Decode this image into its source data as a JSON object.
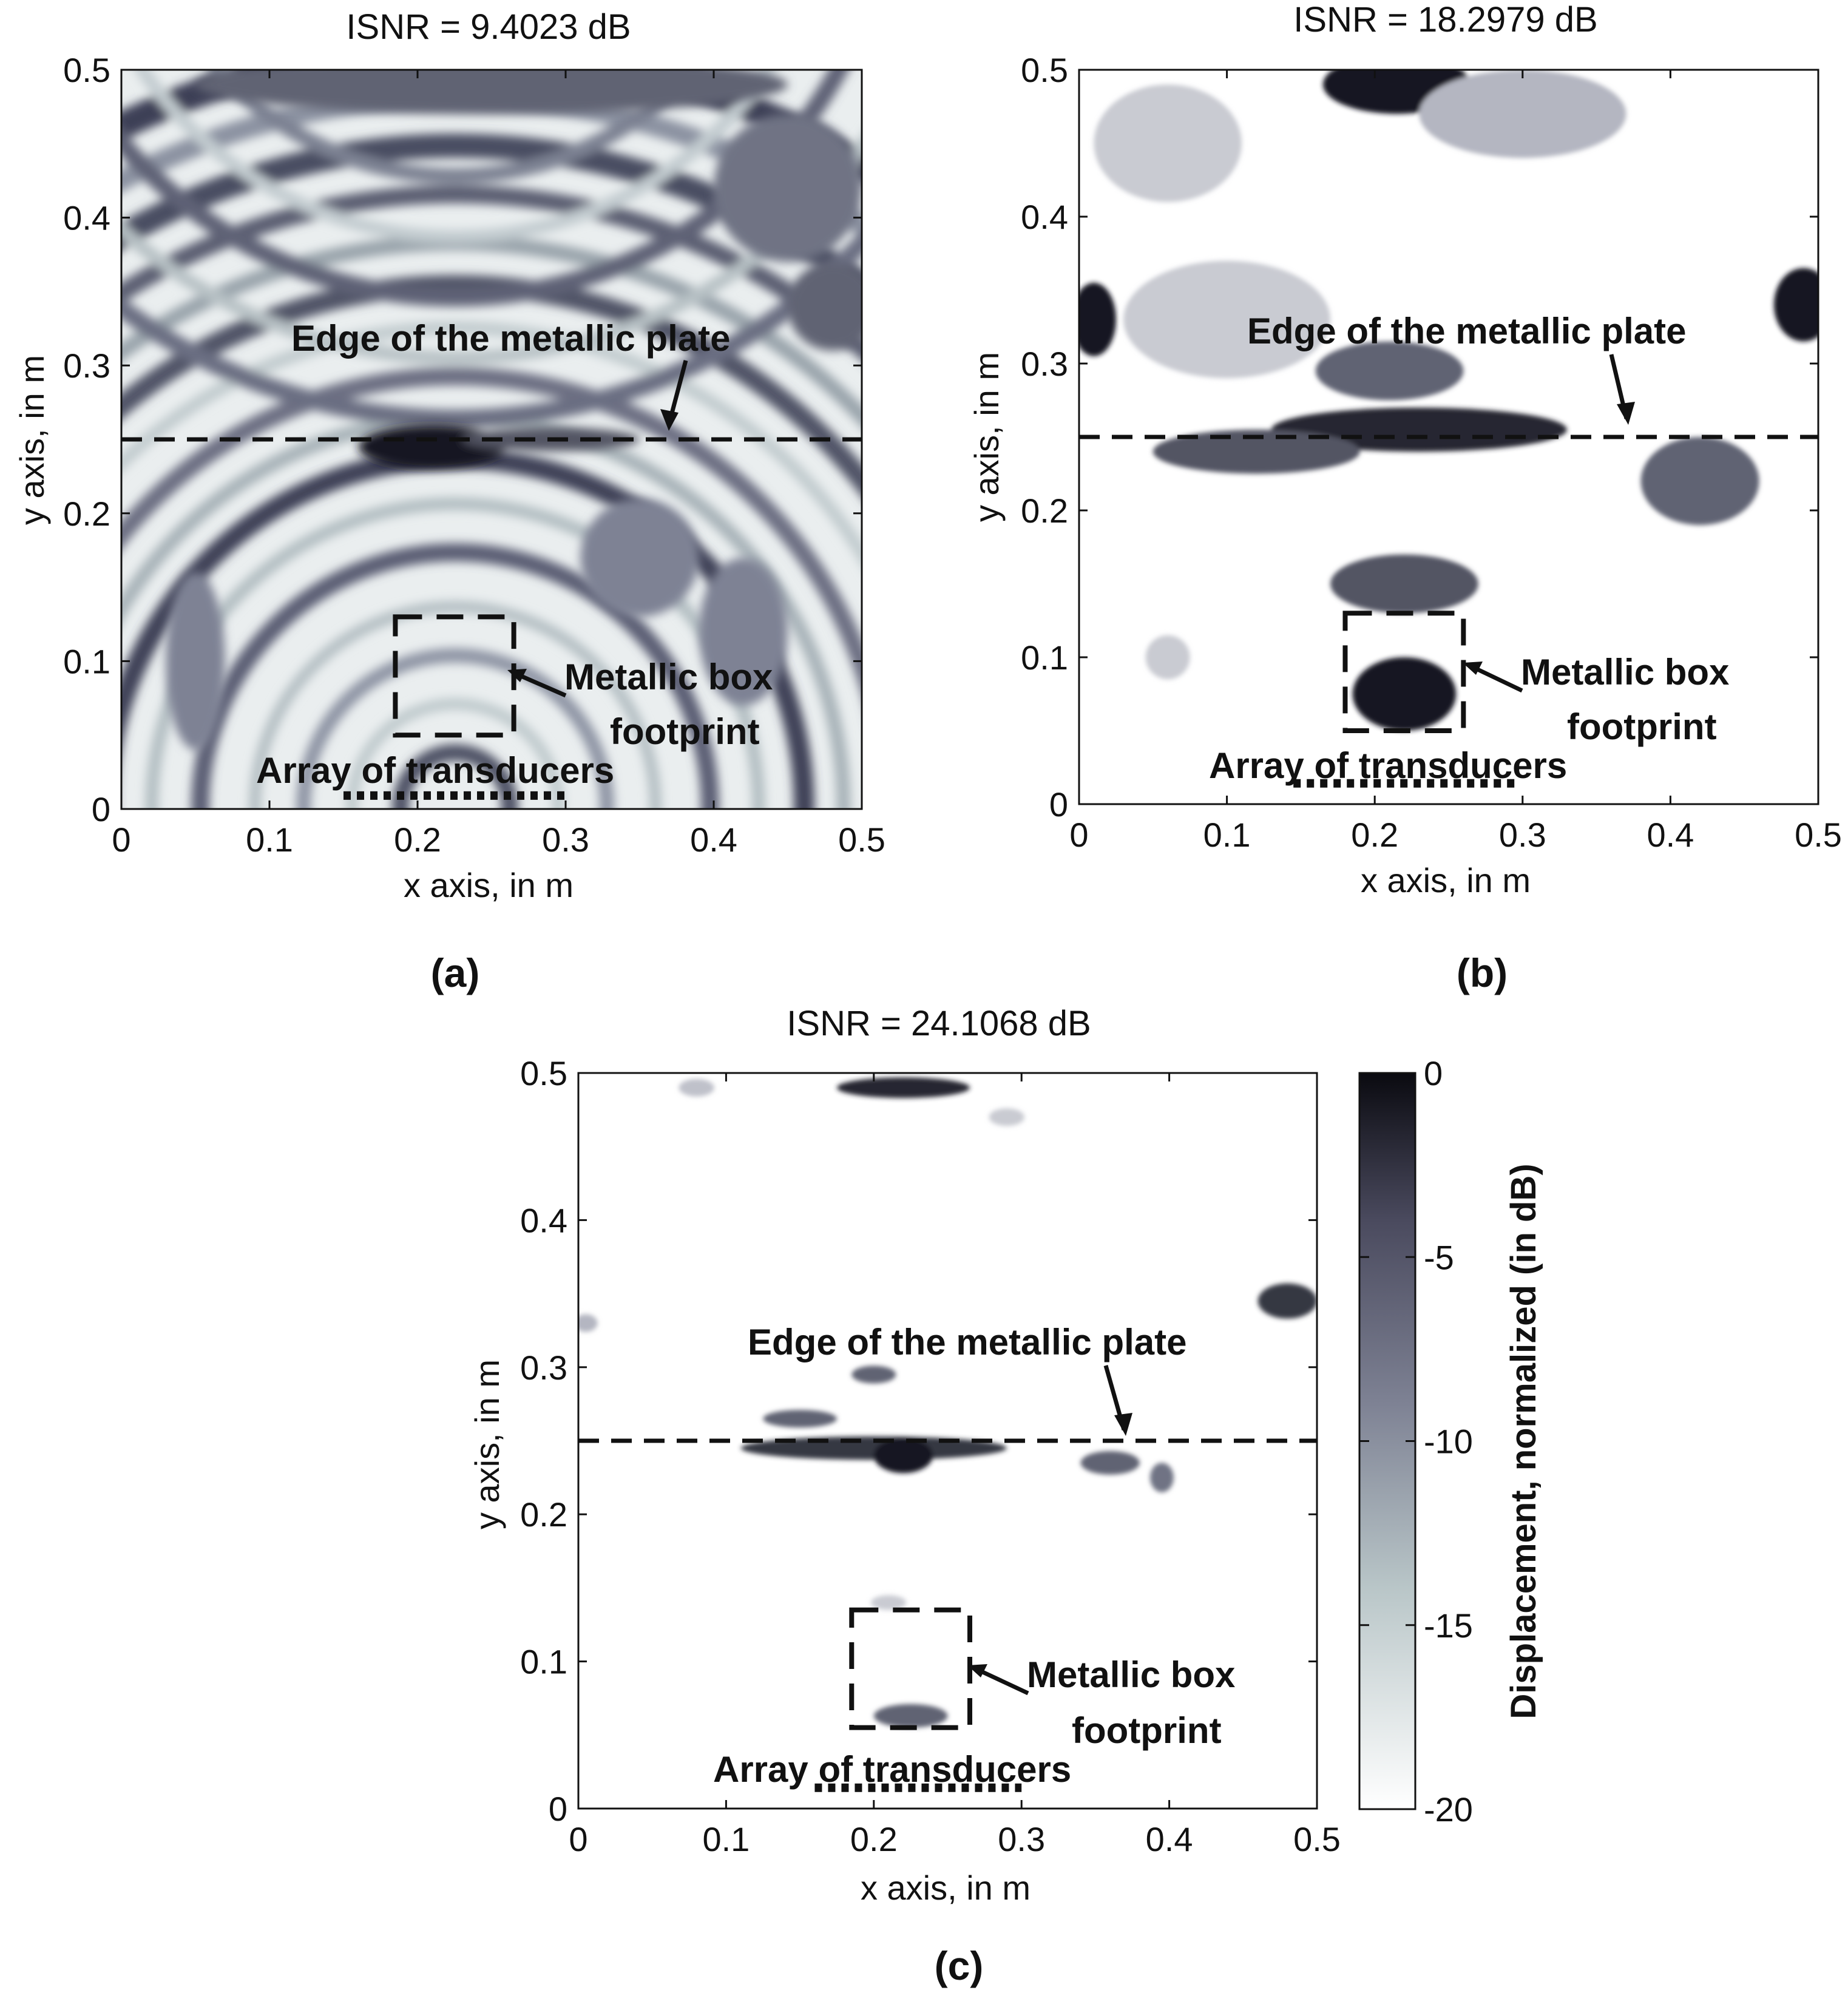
{
  "chart_data": [
    {
      "type": "heatmap",
      "panel_label": "(a)",
      "title": "ISNR = 9.4023 dB",
      "xlabel": "x axis, in m",
      "ylabel": "y axis, in m",
      "xlim": [
        0,
        0.5
      ],
      "ylim": [
        0,
        0.5
      ],
      "xticks": [
        "0",
        "0.1",
        "0.2",
        "0.3",
        "0.4",
        "0.5"
      ],
      "yticks": [
        "0",
        "0.1",
        "0.2",
        "0.3",
        "0.4",
        "0.5"
      ],
      "plate_edge_y": 0.25,
      "box_footprint": {
        "x0": 0.185,
        "x1": 0.265,
        "y0": 0.05,
        "y1": 0.13
      },
      "transducer_array": {
        "x0": 0.15,
        "x1": 0.3,
        "y": 0.005
      },
      "annotations": {
        "edge": "Edge of the metallic plate",
        "box_line1": "Metallic box",
        "box_line2": "footprint",
        "array": "Array of transducers"
      },
      "blobs": [
        {
          "x": 0.21,
          "y": 0.245,
          "rx": 0.05,
          "ry": 0.015,
          "v": -1
        },
        {
          "x": 0.29,
          "y": 0.25,
          "rx": 0.06,
          "ry": 0.008,
          "v": -5
        },
        {
          "x": 0.25,
          "y": 0.49,
          "rx": 0.2,
          "ry": 0.02,
          "v": -6
        },
        {
          "x": 0.45,
          "y": 0.42,
          "rx": 0.05,
          "ry": 0.05,
          "v": -7
        },
        {
          "x": 0.48,
          "y": 0.34,
          "rx": 0.03,
          "ry": 0.03,
          "v": -6
        },
        {
          "x": 0.35,
          "y": 0.17,
          "rx": 0.04,
          "ry": 0.04,
          "v": -8
        },
        {
          "x": 0.42,
          "y": 0.12,
          "rx": 0.03,
          "ry": 0.05,
          "v": -8
        },
        {
          "x": 0.05,
          "y": 0.1,
          "rx": 0.02,
          "ry": 0.06,
          "v": -8
        }
      ]
    },
    {
      "type": "heatmap",
      "panel_label": "(b)",
      "title": "ISNR = 18.2979 dB",
      "xlabel": "x axis, in m",
      "ylabel": "y axis, in m",
      "xlim": [
        0,
        0.5
      ],
      "ylim": [
        0,
        0.5
      ],
      "xticks": [
        "0",
        "0.1",
        "0.2",
        "0.3",
        "0.4",
        "0.5"
      ],
      "yticks": [
        "0",
        "0.1",
        "0.2",
        "0.3",
        "0.4",
        "0.5"
      ],
      "plate_edge_y": 0.25,
      "box_footprint": {
        "x0": 0.18,
        "x1": 0.26,
        "y0": 0.05,
        "y1": 0.13
      },
      "transducer_array": {
        "x0": 0.145,
        "x1": 0.295,
        "y": 0.01
      },
      "annotations": {
        "edge": "Edge of the metallic plate",
        "box_line1": "Metallic box",
        "box_line2": "footprint",
        "array": "Array of transducers"
      },
      "blobs": [
        {
          "x": 0.215,
          "y": 0.49,
          "rx": 0.05,
          "ry": 0.02,
          "v": -1
        },
        {
          "x": 0.3,
          "y": 0.47,
          "rx": 0.07,
          "ry": 0.03,
          "v": -13
        },
        {
          "x": 0.06,
          "y": 0.45,
          "rx": 0.05,
          "ry": 0.04,
          "v": -15
        },
        {
          "x": 0.1,
          "y": 0.33,
          "rx": 0.07,
          "ry": 0.04,
          "v": -15
        },
        {
          "x": 0.01,
          "y": 0.33,
          "rx": 0.015,
          "ry": 0.025,
          "v": -1
        },
        {
          "x": 0.49,
          "y": 0.34,
          "rx": 0.02,
          "ry": 0.025,
          "v": -1
        },
        {
          "x": 0.21,
          "y": 0.295,
          "rx": 0.05,
          "ry": 0.02,
          "v": -6
        },
        {
          "x": 0.23,
          "y": 0.255,
          "rx": 0.1,
          "ry": 0.015,
          "v": -2
        },
        {
          "x": 0.12,
          "y": 0.24,
          "rx": 0.07,
          "ry": 0.015,
          "v": -5
        },
        {
          "x": 0.42,
          "y": 0.22,
          "rx": 0.04,
          "ry": 0.03,
          "v": -6
        },
        {
          "x": 0.22,
          "y": 0.15,
          "rx": 0.05,
          "ry": 0.02,
          "v": -5
        },
        {
          "x": 0.22,
          "y": 0.075,
          "rx": 0.035,
          "ry": 0.025,
          "v": -1
        },
        {
          "x": 0.06,
          "y": 0.1,
          "rx": 0.015,
          "ry": 0.015,
          "v": -15
        }
      ]
    },
    {
      "type": "heatmap",
      "panel_label": "(c)",
      "title": "ISNR = 24.1068 dB",
      "xlabel": "x axis, in m",
      "ylabel": "y axis, in m",
      "xlim": [
        0,
        0.5
      ],
      "ylim": [
        0,
        0.5
      ],
      "xticks": [
        "0",
        "0.1",
        "0.2",
        "0.3",
        "0.4",
        "0.5"
      ],
      "yticks": [
        "0",
        "0.1",
        "0.2",
        "0.3",
        "0.4",
        "0.5"
      ],
      "plate_edge_y": 0.25,
      "box_footprint": {
        "x0": 0.185,
        "x1": 0.265,
        "y0": 0.055,
        "y1": 0.135
      },
      "transducer_array": {
        "x0": 0.16,
        "x1": 0.3,
        "y": 0.01
      },
      "annotations": {
        "edge": "Edge of the metallic plate",
        "box_line1": "Metallic box",
        "box_line2": "footprint",
        "array": "Array of transducers"
      },
      "blobs": [
        {
          "x": 0.22,
          "y": 0.49,
          "rx": 0.045,
          "ry": 0.007,
          "v": -2
        },
        {
          "x": 0.08,
          "y": 0.49,
          "rx": 0.012,
          "ry": 0.006,
          "v": -14
        },
        {
          "x": 0.29,
          "y": 0.47,
          "rx": 0.012,
          "ry": 0.006,
          "v": -15
        },
        {
          "x": 0.2,
          "y": 0.245,
          "rx": 0.09,
          "ry": 0.008,
          "v": -3
        },
        {
          "x": 0.22,
          "y": 0.24,
          "rx": 0.02,
          "ry": 0.012,
          "v": -1
        },
        {
          "x": 0.15,
          "y": 0.265,
          "rx": 0.025,
          "ry": 0.006,
          "v": -6
        },
        {
          "x": 0.2,
          "y": 0.295,
          "rx": 0.015,
          "ry": 0.006,
          "v": -6
        },
        {
          "x": 0.36,
          "y": 0.235,
          "rx": 0.02,
          "ry": 0.008,
          "v": -6
        },
        {
          "x": 0.395,
          "y": 0.225,
          "rx": 0.008,
          "ry": 0.01,
          "v": -7
        },
        {
          "x": 0.48,
          "y": 0.345,
          "rx": 0.02,
          "ry": 0.012,
          "v": -3
        },
        {
          "x": 0.005,
          "y": 0.33,
          "rx": 0.008,
          "ry": 0.006,
          "v": -13
        },
        {
          "x": 0.225,
          "y": 0.063,
          "rx": 0.025,
          "ry": 0.008,
          "v": -6
        },
        {
          "x": 0.21,
          "y": 0.14,
          "rx": 0.012,
          "ry": 0.005,
          "v": -15
        }
      ]
    }
  ],
  "colorbar": {
    "label": "Displacement, normalized (in dB)",
    "min": -20,
    "max": 0,
    "ticks": [
      "0",
      "-5",
      "-10",
      "-15",
      "-20"
    ],
    "color_low": "#ffffff",
    "color_high": "#0a0a10"
  }
}
